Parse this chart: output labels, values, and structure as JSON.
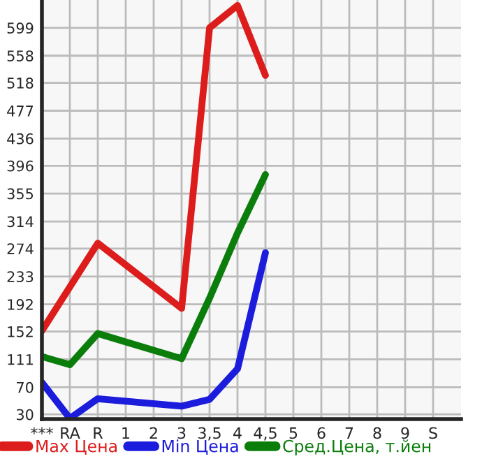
{
  "chart_data": {
    "type": "line",
    "categories": [
      "***",
      "RA",
      "R",
      "1",
      "2",
      "3",
      "3,5",
      "4",
      "4,5",
      "5",
      "6",
      "7",
      "8",
      "9",
      "S"
    ],
    "series": [
      {
        "name": "Max Цена",
        "color": "#dd1c1c",
        "values": [
          153,
          null,
          282,
          null,
          null,
          186,
          599,
          632,
          529,
          null,
          null,
          null,
          null,
          null,
          null
        ]
      },
      {
        "name": "Min Цена",
        "color": "#1c1cdd",
        "values": [
          77,
          24,
          53,
          null,
          null,
          42,
          52,
          97,
          268,
          null,
          null,
          null,
          null,
          null,
          null
        ]
      },
      {
        "name": "Сред.Цена, т.йен",
        "color": "#0a7d0a",
        "values": [
          115,
          103,
          149,
          null,
          null,
          112,
          201,
          297,
          383,
          null,
          null,
          null,
          null,
          null,
          null
        ]
      }
    ],
    "ylim": [
      23,
      640
    ],
    "yticks": [
      30,
      70,
      111,
      152,
      192,
      233,
      274,
      314,
      355,
      396,
      436,
      477,
      518,
      558,
      599
    ],
    "grid": true,
    "legend": "bottom",
    "marker": "none",
    "line_style": "solid"
  }
}
